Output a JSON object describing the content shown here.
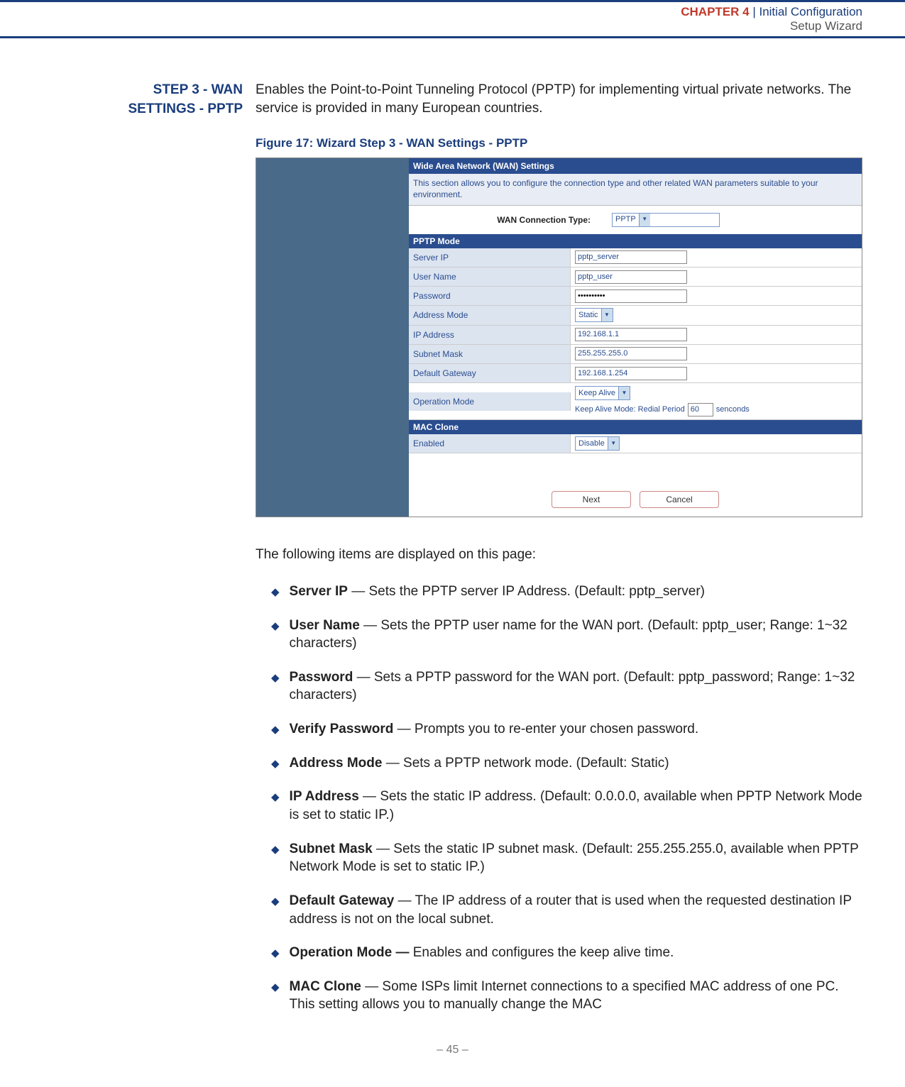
{
  "header": {
    "chapter_label": "CHAPTER 4",
    "separator": "  |  ",
    "title": "Initial Configuration",
    "subtitle": "Setup Wizard"
  },
  "section_title_line1": "STEP 3 - WAN",
  "section_title_line2": "SETTINGS - PPTP",
  "intro": "Enables the Point-to-Point Tunneling Protocol (PPTP) for implementing virtual private networks. The service is provided in many European countries.",
  "figure_caption": "Figure 17:  Wizard Step 3 - WAN Settings - PPTP",
  "screenshot": {
    "title_bar": "Wide Area Network (WAN) Settings",
    "description": "This section allows you to configure the connection type and other related WAN parameters suitable to your environment.",
    "conn_type_label": "WAN Connection Type:",
    "conn_type_value": "PPTP",
    "pptp_mode_header": "PPTP Mode",
    "rows": [
      {
        "label": "Server IP",
        "type": "input",
        "value": "pptp_server"
      },
      {
        "label": "User Name",
        "type": "input",
        "value": "pptp_user"
      },
      {
        "label": "Password",
        "type": "input",
        "value": "••••••••••"
      },
      {
        "label": "Address Mode",
        "type": "select",
        "value": "Static"
      },
      {
        "label": "IP Address",
        "type": "input",
        "value": "192.168.1.1"
      },
      {
        "label": "Subnet Mask",
        "type": "input",
        "value": "255.255.255.0"
      },
      {
        "label": "Default Gateway",
        "type": "input",
        "value": "192.168.1.254"
      }
    ],
    "opmode_label": "Operation Mode",
    "opmode_value": "Keep Alive",
    "opmode_line2_pre": "Keep Alive Mode: Redial Period",
    "opmode_line2_val": "60",
    "opmode_line2_post": "senconds",
    "mac_clone_header": "MAC Clone",
    "mac_row_label": "Enabled",
    "mac_row_value": "Disable",
    "btn_next": "Next",
    "btn_cancel": "Cancel"
  },
  "follow_text": "The following items are displayed on this page:",
  "bullets": [
    {
      "bold": "Server IP",
      "rest": " — Sets the PPTP server IP Address. (Default: pptp_server)"
    },
    {
      "bold": "User Name",
      "rest": " — Sets the PPTP user name for the WAN port. (Default: pptp_user; Range: 1~32 characters)"
    },
    {
      "bold": "Password",
      "rest": " — Sets a PPTP password for the WAN port. (Default: pptp_password; Range: 1~32 characters)"
    },
    {
      "bold": "Verify Password",
      "rest": " — Prompts you to re-enter your chosen password."
    },
    {
      "bold": "Address Mode",
      "rest": " — Sets a PPTP network mode. (Default: Static)"
    },
    {
      "bold": "IP Address",
      "rest": " — Sets the static IP address. (Default: 0.0.0.0, available when PPTP Network Mode is set to static IP.)"
    },
    {
      "bold": "Subnet Mask",
      "rest": " — Sets the static IP subnet mask. (Default: 255.255.255.0, available when PPTP Network Mode is set to static IP.)"
    },
    {
      "bold": "Default Gateway",
      "rest": " — The IP address of a router that is used when the requested destination IP address is not on the local subnet."
    },
    {
      "bold": "Operation Mode —",
      "rest": " Enables and configures the keep alive time."
    },
    {
      "bold": "MAC Clone",
      "rest": " — Some ISPs limit Internet connections to a specified MAC address of one PC. This setting allows you to manually change the MAC"
    }
  ],
  "page_num": "–  45  –"
}
